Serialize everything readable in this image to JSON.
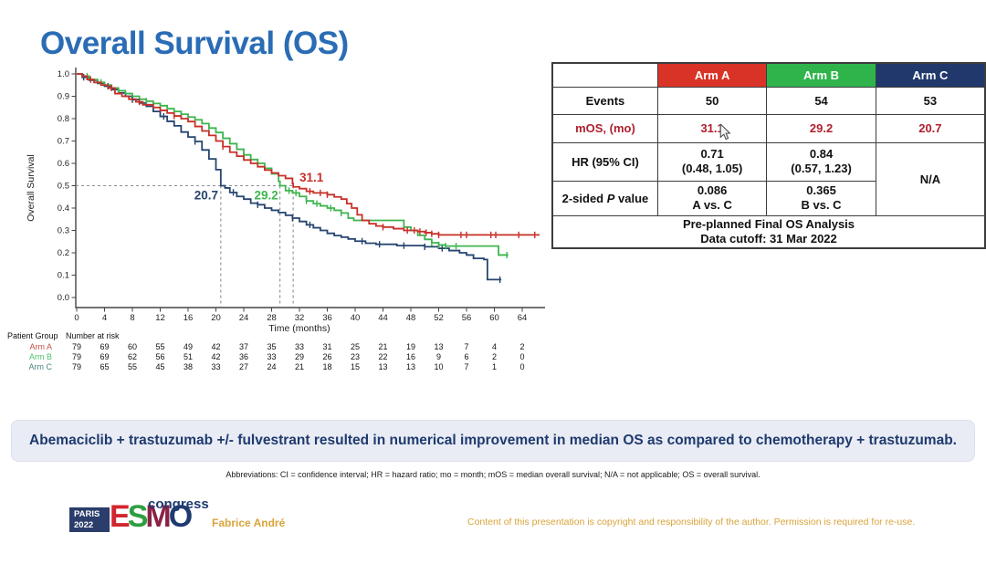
{
  "slide": {
    "title": "Overall Survival (OS)",
    "banner": "Abemaciclib + trastuzumab +/- fulvestrant resulted in numerical improvement in median OS as compared to chemotherapy + trastuzumab.",
    "abbreviations": "Abbreviations: CI = confidence interval; HR = hazard ratio; mo = month; mOS = median overall survival; N/A = not applicable; OS = overall survival.",
    "footer": {
      "logo": {
        "paris": "PARIS",
        "year": "2022",
        "letters": [
          "E",
          "S",
          "M",
          "O"
        ],
        "congress": "congress"
      },
      "speaker": "Fabrice André",
      "copyright": "Content of this presentation is copyright and responsibility of the author. Permission is required for re-use."
    }
  },
  "results_table": {
    "col_headers": [
      "",
      "Arm A",
      "Arm B",
      "Arm C"
    ],
    "header_colors": [
      "#ffffff",
      "#d93327",
      "#2fb44c",
      "#20386b"
    ],
    "value_red": "#b01f2e",
    "rows": {
      "events": {
        "label": "Events",
        "values": [
          "50",
          "54",
          "53"
        ]
      },
      "mos": {
        "label": "mOS, (mo)",
        "values": [
          "31.1",
          "29.2",
          "20.7"
        ]
      },
      "hr": {
        "label": "HR (95% CI)",
        "a": "0.71",
        "a_ci": "(0.48, 1.05)",
        "b": "0.84",
        "b_ci": "(0.57, 1.23)",
        "c": "N/A"
      },
      "p": {
        "label_pre": "2-sided ",
        "label_it": "P",
        "label_post": " value",
        "a": "0.086",
        "a_sub": "A vs. C",
        "b": "0.365",
        "b_sub": "B vs. C"
      },
      "footer_line1": "Pre-planned Final OS Analysis",
      "footer_line2": "Data cutoff: 31 Mar 2022"
    }
  },
  "chart_data": {
    "type": "line",
    "subtype": "kaplan-meier-step",
    "title": "",
    "xlabel": "Time (months)",
    "ylabel": "Overall Survival",
    "xlim": [
      0,
      67
    ],
    "ylim": [
      0.0,
      1.0
    ],
    "xticks": [
      0,
      4,
      8,
      12,
      16,
      20,
      24,
      28,
      32,
      36,
      40,
      44,
      48,
      52,
      56,
      60,
      64
    ],
    "ytick_step": 0.1,
    "grid": false,
    "reference_lines": {
      "horizontal_y": 0.5,
      "horizontal_x_end": 31.1,
      "verticals": [
        20.7,
        29.2,
        31.1
      ]
    },
    "series": [
      {
        "name": "Arm C",
        "color": "#26456f",
        "median": "20.7",
        "median_value": 20.7,
        "label_dx": -16,
        "label_v": 0.455,
        "points": [
          [
            0,
            1.0
          ],
          [
            0.8,
            0.985
          ],
          [
            1.8,
            0.972
          ],
          [
            3,
            0.958
          ],
          [
            4,
            0.945
          ],
          [
            5,
            0.93
          ],
          [
            6,
            0.915
          ],
          [
            7,
            0.9
          ],
          [
            8,
            0.885
          ],
          [
            9,
            0.87
          ],
          [
            10,
            0.855
          ],
          [
            11,
            0.832
          ],
          [
            12,
            0.81
          ],
          [
            13,
            0.788
          ],
          [
            14,
            0.768
          ],
          [
            15,
            0.74
          ],
          [
            16,
            0.718
          ],
          [
            17,
            0.698
          ],
          [
            18,
            0.66
          ],
          [
            19,
            0.62
          ],
          [
            20,
            0.572
          ],
          [
            20.7,
            0.5
          ],
          [
            21.3,
            0.49
          ],
          [
            22,
            0.47
          ],
          [
            23,
            0.452
          ],
          [
            24,
            0.44
          ],
          [
            25,
            0.422
          ],
          [
            26,
            0.415
          ],
          [
            27,
            0.4
          ],
          [
            28,
            0.39
          ],
          [
            29,
            0.38
          ],
          [
            30,
            0.368
          ],
          [
            31,
            0.355
          ],
          [
            32,
            0.34
          ],
          [
            33,
            0.325
          ],
          [
            34,
            0.312
          ],
          [
            35,
            0.3
          ],
          [
            36,
            0.287
          ],
          [
            37,
            0.277
          ],
          [
            38,
            0.27
          ],
          [
            39,
            0.262
          ],
          [
            40,
            0.252
          ],
          [
            41.5,
            0.243
          ],
          [
            43,
            0.238
          ],
          [
            46,
            0.232
          ],
          [
            50,
            0.227
          ],
          [
            52,
            0.22
          ],
          [
            53.5,
            0.21
          ],
          [
            55,
            0.2
          ],
          [
            56,
            0.19
          ],
          [
            57,
            0.175
          ],
          [
            58.5,
            0.17
          ],
          [
            59,
            0.08
          ],
          [
            61,
            0.08
          ]
        ],
        "censors": [
          1,
          4.5,
          8,
          12.5,
          17,
          22.5,
          26,
          31,
          33.5,
          41,
          43.5,
          47,
          50,
          52.5,
          60.8
        ]
      },
      {
        "name": "Arm B",
        "color": "#3eb54f",
        "median": "29.2",
        "median_value": 29.2,
        "label_dx": -15,
        "label_v": 0.455,
        "points": [
          [
            0,
            1.0
          ],
          [
            0.8,
            0.99
          ],
          [
            1.8,
            0.975
          ],
          [
            3,
            0.962
          ],
          [
            4,
            0.95
          ],
          [
            5,
            0.937
          ],
          [
            6,
            0.925
          ],
          [
            7,
            0.912
          ],
          [
            8,
            0.9
          ],
          [
            9,
            0.887
          ],
          [
            10,
            0.878
          ],
          [
            11,
            0.868
          ],
          [
            12,
            0.858
          ],
          [
            13,
            0.845
          ],
          [
            14,
            0.832
          ],
          [
            15,
            0.82
          ],
          [
            16,
            0.807
          ],
          [
            17,
            0.795
          ],
          [
            18,
            0.778
          ],
          [
            19,
            0.758
          ],
          [
            20,
            0.738
          ],
          [
            21,
            0.712
          ],
          [
            22,
            0.688
          ],
          [
            23,
            0.663
          ],
          [
            24,
            0.638
          ],
          [
            25,
            0.617
          ],
          [
            26,
            0.6
          ],
          [
            27,
            0.578
          ],
          [
            28,
            0.553
          ],
          [
            29,
            0.52
          ],
          [
            29.2,
            0.5
          ],
          [
            30,
            0.478
          ],
          [
            31,
            0.468
          ],
          [
            32,
            0.452
          ],
          [
            33,
            0.432
          ],
          [
            34,
            0.42
          ],
          [
            35,
            0.41
          ],
          [
            36,
            0.4
          ],
          [
            37,
            0.39
          ],
          [
            38,
            0.378
          ],
          [
            39,
            0.355
          ],
          [
            39.8,
            0.345
          ],
          [
            46,
            0.345
          ],
          [
            47,
            0.315
          ],
          [
            48,
            0.3
          ],
          [
            49,
            0.278
          ],
          [
            50,
            0.26
          ],
          [
            51,
            0.245
          ],
          [
            52,
            0.235
          ],
          [
            53,
            0.23
          ],
          [
            60,
            0.23
          ],
          [
            60.6,
            0.19
          ],
          [
            62,
            0.19
          ]
        ],
        "censors": [
          1.5,
          3.5,
          6,
          10,
          15,
          19,
          24,
          30.5,
          31.5,
          33,
          34.5,
          36.5,
          38,
          51,
          52,
          53,
          54.5,
          61.8
        ]
      },
      {
        "name": "Arm A",
        "color": "#c73028",
        "median": "31.1",
        "median_value": 31.1,
        "label_dx": 20,
        "label_v": 0.535,
        "points": [
          [
            0,
            1.0
          ],
          [
            0.8,
            0.99
          ],
          [
            1.5,
            0.975
          ],
          [
            2.5,
            0.962
          ],
          [
            3.5,
            0.95
          ],
          [
            4.5,
            0.937
          ],
          [
            5.5,
            0.912
          ],
          [
            6.5,
            0.9
          ],
          [
            7.5,
            0.887
          ],
          [
            8.5,
            0.875
          ],
          [
            9.5,
            0.862
          ],
          [
            11,
            0.85
          ],
          [
            12,
            0.837
          ],
          [
            13,
            0.825
          ],
          [
            14,
            0.812
          ],
          [
            15,
            0.8
          ],
          [
            16,
            0.787
          ],
          [
            17,
            0.765
          ],
          [
            18,
            0.745
          ],
          [
            19,
            0.725
          ],
          [
            20,
            0.7
          ],
          [
            21,
            0.675
          ],
          [
            22,
            0.65
          ],
          [
            23,
            0.632
          ],
          [
            24,
            0.615
          ],
          [
            25,
            0.6
          ],
          [
            26,
            0.585
          ],
          [
            27,
            0.57
          ],
          [
            28,
            0.557
          ],
          [
            29,
            0.545
          ],
          [
            30,
            0.533
          ],
          [
            31,
            0.51
          ],
          [
            31.1,
            0.495
          ],
          [
            32,
            0.487
          ],
          [
            33,
            0.475
          ],
          [
            34,
            0.468
          ],
          [
            36,
            0.46
          ],
          [
            37,
            0.45
          ],
          [
            38,
            0.44
          ],
          [
            38.8,
            0.42
          ],
          [
            39.5,
            0.4
          ],
          [
            40.3,
            0.37
          ],
          [
            41,
            0.345
          ],
          [
            42,
            0.33
          ],
          [
            43,
            0.32
          ],
          [
            44,
            0.315
          ],
          [
            45.5,
            0.308
          ],
          [
            47,
            0.3
          ],
          [
            49,
            0.295
          ],
          [
            50,
            0.29
          ],
          [
            51,
            0.285
          ],
          [
            52,
            0.28
          ],
          [
            66.5,
            0.28
          ]
        ],
        "censors": [
          2,
          5,
          9,
          14,
          21,
          33.5,
          35,
          36,
          44,
          47.5,
          48.5,
          49.3,
          50.2,
          51,
          52,
          55.2,
          56,
          59.5,
          60.2,
          63.5,
          65.8
        ]
      }
    ],
    "number_at_risk": {
      "header_left": "Patient Group",
      "header_right": "Number at risk",
      "times": [
        0,
        4,
        8,
        12,
        16,
        20,
        24,
        28,
        32,
        36,
        40,
        44,
        48,
        52,
        56,
        60,
        64
      ],
      "rows": [
        {
          "name": "Arm A",
          "label_color": "#c75048",
          "values": [
            79,
            69,
            60,
            55,
            49,
            42,
            37,
            35,
            33,
            31,
            25,
            21,
            19,
            13,
            7,
            4,
            2
          ]
        },
        {
          "name": "Arm B",
          "label_color": "#4fc369",
          "values": [
            79,
            69,
            62,
            56,
            51,
            42,
            36,
            33,
            29,
            26,
            23,
            22,
            16,
            9,
            6,
            2,
            0
          ]
        },
        {
          "name": "Arm C",
          "label_color": "#4d8682",
          "values": [
            79,
            65,
            55,
            45,
            38,
            33,
            27,
            24,
            21,
            18,
            15,
            13,
            13,
            10,
            7,
            1,
            0
          ]
        }
      ]
    }
  }
}
